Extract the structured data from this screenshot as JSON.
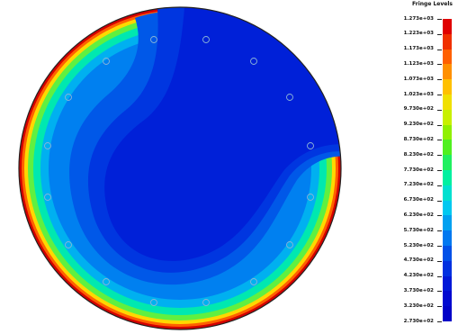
{
  "legend": {
    "title": "Fringe Levels",
    "levels": [
      "1.273e+03",
      "1.223e+03",
      "1.173e+03",
      "1.123e+03",
      "1.073e+03",
      "1.023e+03",
      "9.730e+02",
      "9.230e+02",
      "8.730e+02",
      "8.230e+02",
      "7.730e+02",
      "7.230e+02",
      "6.730e+02",
      "6.230e+02",
      "5.730e+02",
      "5.230e+02",
      "4.730e+02",
      "4.230e+02",
      "3.730e+02",
      "3.230e+02",
      "2.730e+02"
    ],
    "colors": [
      "#e00000",
      "#f03000",
      "#ff6000",
      "#ff9000",
      "#ffc000",
      "#f0e000",
      "#c8f000",
      "#90f000",
      "#50f020",
      "#20f060",
      "#00f0a0",
      "#00e0d0",
      "#00c8f0",
      "#00a0f0",
      "#0078f0",
      "#0050e8",
      "#0030e0",
      "#0018d8",
      "#0008d0",
      "#0000c8"
    ]
  }
}
